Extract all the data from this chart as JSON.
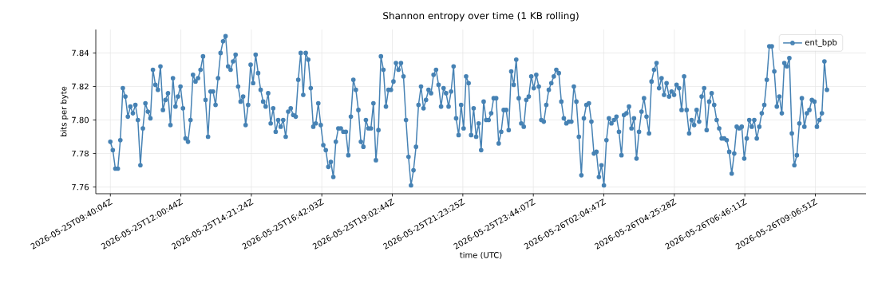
{
  "chart_data": {
    "type": "line",
    "title": "Shannon entropy over time (1 KB rolling)",
    "xlabel": "time (UTC)",
    "ylabel": "bits per byte",
    "x": [
      "2026-05-25T09:40",
      "2026-05-25T09:45",
      "2026-05-25T09:50",
      "2026-05-25T09:55",
      "2026-05-25T10:00",
      "2026-05-25T10:05",
      "2026-05-25T10:10",
      "2026-05-25T10:15",
      "2026-05-25T10:20",
      "2026-05-25T10:25",
      "2026-05-25T10:30",
      "2026-05-25T10:35",
      "2026-05-25T10:40",
      "2026-05-25T10:45",
      "2026-05-25T10:50",
      "2026-05-25T10:55",
      "2026-05-25T11:00",
      "2026-05-25T11:05",
      "2026-05-25T11:10",
      "2026-05-25T11:15",
      "2026-05-25T11:20",
      "2026-05-25T11:25",
      "2026-05-25T11:30",
      "2026-05-25T11:35",
      "2026-05-25T11:40",
      "2026-05-25T11:45",
      "2026-05-25T11:50",
      "2026-05-25T11:55",
      "2026-05-25T12:00",
      "2026-05-25T12:05",
      "2026-05-25T12:10",
      "2026-05-25T12:15",
      "2026-05-25T12:20",
      "2026-05-25T12:25",
      "2026-05-25T12:30",
      "2026-05-25T12:35",
      "2026-05-25T12:40",
      "2026-05-25T12:45",
      "2026-05-25T12:50",
      "2026-05-25T12:55",
      "2026-05-25T13:00",
      "2026-05-25T13:05",
      "2026-05-25T13:10",
      "2026-05-25T13:15",
      "2026-05-25T13:20",
      "2026-05-25T13:25",
      "2026-05-25T13:30",
      "2026-05-25T13:35",
      "2026-05-25T13:40",
      "2026-05-25T13:45",
      "2026-05-25T13:50",
      "2026-05-25T13:55",
      "2026-05-25T14:00",
      "2026-05-25T14:05",
      "2026-05-25T14:10",
      "2026-05-25T14:15",
      "2026-05-25T14:20",
      "2026-05-25T14:25",
      "2026-05-25T14:30",
      "2026-05-25T14:35",
      "2026-05-25T14:40",
      "2026-05-25T14:45",
      "2026-05-25T14:50",
      "2026-05-25T14:55",
      "2026-05-25T15:00",
      "2026-05-25T15:05",
      "2026-05-25T15:10",
      "2026-05-25T15:15",
      "2026-05-25T15:20",
      "2026-05-25T15:25",
      "2026-05-25T15:30",
      "2026-05-25T15:35",
      "2026-05-25T15:40",
      "2026-05-25T15:45",
      "2026-05-25T15:50",
      "2026-05-25T15:55",
      "2026-05-25T16:00",
      "2026-05-25T16:05",
      "2026-05-25T16:10",
      "2026-05-25T16:15",
      "2026-05-25T16:20",
      "2026-05-25T16:25",
      "2026-05-25T16:30",
      "2026-05-25T16:35",
      "2026-05-25T16:40",
      "2026-05-25T16:45",
      "2026-05-25T16:50",
      "2026-05-25T16:55",
      "2026-05-25T17:00",
      "2026-05-25T17:05",
      "2026-05-25T17:10",
      "2026-05-25T17:15",
      "2026-05-25T17:20",
      "2026-05-25T17:25",
      "2026-05-25T17:30",
      "2026-05-25T17:35",
      "2026-05-25T17:40",
      "2026-05-25T17:45",
      "2026-05-25T17:50",
      "2026-05-25T17:55",
      "2026-05-25T18:00",
      "2026-05-25T18:05",
      "2026-05-25T18:10",
      "2026-05-25T18:15",
      "2026-05-25T18:20",
      "2026-05-25T18:25",
      "2026-05-25T18:30",
      "2026-05-25T18:35",
      "2026-05-25T18:40",
      "2026-05-25T18:45",
      "2026-05-25T18:50",
      "2026-05-25T18:55",
      "2026-05-25T19:00",
      "2026-05-25T19:05",
      "2026-05-25T19:10",
      "2026-05-25T19:15",
      "2026-05-25T19:20",
      "2026-05-25T19:25",
      "2026-05-25T19:30",
      "2026-05-25T19:35",
      "2026-05-25T19:40",
      "2026-05-25T19:45",
      "2026-05-25T19:50",
      "2026-05-25T19:55",
      "2026-05-25T20:00",
      "2026-05-25T20:05",
      "2026-05-25T20:10",
      "2026-05-25T20:15",
      "2026-05-25T20:20",
      "2026-05-25T20:25",
      "2026-05-25T20:30",
      "2026-05-25T20:35",
      "2026-05-25T20:40",
      "2026-05-25T20:45",
      "2026-05-25T20:50",
      "2026-05-25T20:55",
      "2026-05-25T21:00",
      "2026-05-25T21:05",
      "2026-05-25T21:10",
      "2026-05-25T21:15",
      "2026-05-25T21:20",
      "2026-05-25T21:25",
      "2026-05-25T21:30",
      "2026-05-25T21:35",
      "2026-05-25T21:40",
      "2026-05-25T21:45",
      "2026-05-25T21:50",
      "2026-05-25T21:55",
      "2026-05-25T22:00",
      "2026-05-25T22:05",
      "2026-05-25T22:10",
      "2026-05-25T22:15",
      "2026-05-25T22:20",
      "2026-05-25T22:25",
      "2026-05-25T22:30",
      "2026-05-25T22:35",
      "2026-05-25T22:40",
      "2026-05-25T22:45",
      "2026-05-25T22:50",
      "2026-05-25T22:55",
      "2026-05-25T23:00",
      "2026-05-25T23:05",
      "2026-05-25T23:10",
      "2026-05-25T23:15",
      "2026-05-25T23:20",
      "2026-05-25T23:25",
      "2026-05-25T23:30",
      "2026-05-25T23:35",
      "2026-05-25T23:40",
      "2026-05-25T23:45",
      "2026-05-25T23:50",
      "2026-05-25T23:55",
      "2026-05-26T00:00",
      "2026-05-26T00:05",
      "2026-05-26T00:10",
      "2026-05-26T00:15",
      "2026-05-26T00:20",
      "2026-05-26T00:25",
      "2026-05-26T00:30",
      "2026-05-26T00:35",
      "2026-05-26T00:40",
      "2026-05-26T00:45",
      "2026-05-26T00:50",
      "2026-05-26T00:55",
      "2026-05-26T01:00",
      "2026-05-26T01:05",
      "2026-05-26T01:10",
      "2026-05-26T01:15",
      "2026-05-26T01:20",
      "2026-05-26T01:25",
      "2026-05-26T01:30",
      "2026-05-26T01:35",
      "2026-05-26T01:40",
      "2026-05-26T01:45",
      "2026-05-26T01:50",
      "2026-05-26T01:55",
      "2026-05-26T02:00",
      "2026-05-26T02:05",
      "2026-05-26T02:10",
      "2026-05-26T02:15",
      "2026-05-26T02:20",
      "2026-05-26T02:25",
      "2026-05-26T02:30",
      "2026-05-26T02:35",
      "2026-05-26T02:40",
      "2026-05-26T02:45",
      "2026-05-26T02:50",
      "2026-05-26T02:55",
      "2026-05-26T03:00",
      "2026-05-26T03:05",
      "2026-05-26T03:10",
      "2026-05-26T03:15",
      "2026-05-26T03:20",
      "2026-05-26T03:25",
      "2026-05-26T03:30",
      "2026-05-26T03:35",
      "2026-05-26T03:40",
      "2026-05-26T03:45",
      "2026-05-26T03:50",
      "2026-05-26T03:55",
      "2026-05-26T04:00",
      "2026-05-26T04:05",
      "2026-05-26T04:10",
      "2026-05-26T04:15",
      "2026-05-26T04:20",
      "2026-05-26T04:25",
      "2026-05-26T04:30",
      "2026-05-26T04:35",
      "2026-05-26T04:40",
      "2026-05-26T04:45",
      "2026-05-26T04:50",
      "2026-05-26T04:55",
      "2026-05-26T05:00",
      "2026-05-26T05:05",
      "2026-05-26T05:10",
      "2026-05-26T05:15",
      "2026-05-26T05:20",
      "2026-05-26T05:25",
      "2026-05-26T05:30",
      "2026-05-26T05:35",
      "2026-05-26T05:40",
      "2026-05-26T05:45",
      "2026-05-26T05:50",
      "2026-05-26T05:55",
      "2026-05-26T06:00",
      "2026-05-26T06:05",
      "2026-05-26T06:10",
      "2026-05-26T06:15",
      "2026-05-26T06:20",
      "2026-05-26T06:25",
      "2026-05-26T06:30",
      "2026-05-26T06:35",
      "2026-05-26T06:40",
      "2026-05-26T06:45",
      "2026-05-26T06:50",
      "2026-05-26T06:55",
      "2026-05-26T07:00",
      "2026-05-26T07:05",
      "2026-05-26T07:10",
      "2026-05-26T07:15",
      "2026-05-26T07:20",
      "2026-05-26T07:25",
      "2026-05-26T07:30",
      "2026-05-26T07:35",
      "2026-05-26T07:40",
      "2026-05-26T07:45",
      "2026-05-26T07:50",
      "2026-05-26T07:55",
      "2026-05-26T08:00",
      "2026-05-26T08:05",
      "2026-05-26T08:10",
      "2026-05-26T08:15",
      "2026-05-26T08:20",
      "2026-05-26T08:25",
      "2026-05-26T08:30",
      "2026-05-26T08:35",
      "2026-05-26T08:40",
      "2026-05-26T08:45",
      "2026-05-26T08:50",
      "2026-05-26T08:55",
      "2026-05-26T09:00",
      "2026-05-26T09:05",
      "2026-05-26T09:10",
      "2026-05-26T09:15",
      "2026-05-26T09:20",
      "2026-05-26T09:25",
      "2026-05-26T09:30"
    ],
    "series": [
      {
        "name": "ent_bpb",
        "color": "#4682b4",
        "values": [
          7.787,
          7.782,
          7.771,
          7.771,
          7.788,
          7.819,
          7.814,
          7.802,
          7.808,
          7.804,
          7.809,
          7.8,
          7.773,
          7.795,
          7.81,
          7.805,
          7.801,
          7.83,
          7.821,
          7.818,
          7.832,
          7.806,
          7.812,
          7.816,
          7.797,
          7.825,
          7.808,
          7.814,
          7.82,
          7.807,
          7.789,
          7.787,
          7.8,
          7.827,
          7.823,
          7.825,
          7.83,
          7.838,
          7.812,
          7.79,
          7.817,
          7.817,
          7.809,
          7.825,
          7.84,
          7.847,
          7.85,
          7.832,
          7.83,
          7.835,
          7.839,
          7.82,
          7.811,
          7.814,
          7.797,
          7.809,
          7.833,
          7.822,
          7.839,
          7.828,
          7.818,
          7.811,
          7.808,
          7.816,
          7.798,
          7.807,
          7.793,
          7.8,
          7.796,
          7.8,
          7.79,
          7.805,
          7.807,
          7.803,
          7.802,
          7.824,
          7.84,
          7.815,
          7.84,
          7.836,
          7.819,
          7.796,
          7.798,
          7.81,
          7.797,
          7.785,
          7.782,
          7.772,
          7.775,
          7.766,
          7.787,
          7.795,
          7.795,
          7.793,
          7.793,
          7.779,
          7.802,
          7.824,
          7.818,
          7.806,
          7.787,
          7.784,
          7.8,
          7.795,
          7.795,
          7.81,
          7.776,
          7.794,
          7.838,
          7.83,
          7.808,
          7.818,
          7.818,
          7.823,
          7.834,
          7.83,
          7.834,
          7.826,
          7.8,
          7.778,
          7.761,
          7.77,
          7.784,
          7.809,
          7.82,
          7.807,
          7.812,
          7.818,
          7.816,
          7.827,
          7.83,
          7.821,
          7.808,
          7.819,
          7.816,
          7.808,
          7.817,
          7.832,
          7.801,
          7.791,
          7.809,
          7.795,
          7.826,
          7.822,
          7.791,
          7.807,
          7.79,
          7.798,
          7.782,
          7.811,
          7.8,
          7.8,
          7.804,
          7.813,
          7.813,
          7.786,
          7.793,
          7.806,
          7.806,
          7.794,
          7.829,
          7.821,
          7.836,
          7.813,
          7.798,
          7.796,
          7.812,
          7.814,
          7.826,
          7.819,
          7.827,
          7.82,
          7.8,
          7.799,
          7.809,
          7.818,
          7.822,
          7.826,
          7.83,
          7.828,
          7.811,
          7.801,
          7.798,
          7.799,
          7.799,
          7.82,
          7.811,
          7.79,
          7.767,
          7.801,
          7.809,
          7.81,
          7.799,
          7.78,
          7.781,
          7.766,
          7.773,
          7.761,
          7.788,
          7.801,
          7.798,
          7.8,
          7.802,
          7.793,
          7.779,
          7.803,
          7.804,
          7.808,
          7.795,
          7.801,
          7.777,
          7.793,
          7.805,
          7.813,
          7.802,
          7.792,
          7.823,
          7.83,
          7.834,
          7.819,
          7.825,
          7.815,
          7.822,
          7.814,
          7.817,
          7.815,
          7.821,
          7.819,
          7.806,
          7.826,
          7.806,
          7.792,
          7.8,
          7.797,
          7.806,
          7.799,
          7.814,
          7.819,
          7.794,
          7.811,
          7.816,
          7.809,
          7.8,
          7.795,
          7.789,
          7.789,
          7.788,
          7.781,
          7.768,
          7.78,
          7.796,
          7.795,
          7.796,
          7.777,
          7.789,
          7.8,
          7.796,
          7.8,
          7.789,
          7.796,
          7.804,
          7.809,
          7.824,
          7.844,
          7.844,
          7.829,
          7.808,
          7.814,
          7.804,
          7.834,
          7.832,
          7.837,
          7.792,
          7.773,
          7.779,
          7.798,
          7.813,
          7.796,
          7.804,
          7.806,
          7.812,
          7.811,
          7.796,
          7.8,
          7.804,
          7.835,
          7.818
        ]
      }
    ],
    "xlim": [
      "2026-05-25T09:11",
      "2026-05-26T10:48"
    ],
    "ylim": [
      7.756,
      7.854
    ],
    "xticks": [
      {
        "value": "2026-05-25T09:40:04",
        "label": "2026-05-25T09:40:04Z"
      },
      {
        "value": "2026-05-25T12:00:44",
        "label": "2026-05-25T12:00:44Z"
      },
      {
        "value": "2026-05-25T14:21:24",
        "label": "2026-05-25T14:21:24Z"
      },
      {
        "value": "2026-05-25T16:42:03",
        "label": "2026-05-25T16:42:03Z"
      },
      {
        "value": "2026-05-25T19:02:44",
        "label": "2026-05-25T19:02:44Z"
      },
      {
        "value": "2026-05-25T21:23:25",
        "label": "2026-05-25T21:23:25Z"
      },
      {
        "value": "2026-05-25T23:44:07",
        "label": "2026-05-25T23:44:07Z"
      },
      {
        "value": "2026-05-26T02:04:47",
        "label": "2026-05-26T02:04:47Z"
      },
      {
        "value": "2026-05-26T04:25:28",
        "label": "2026-05-26T04:25:28Z"
      },
      {
        "value": "2026-05-26T06:46:11",
        "label": "2026-05-26T06:46:11Z"
      },
      {
        "value": "2026-05-26T09:06:51",
        "label": "2026-05-26T09:06:51Z"
      }
    ],
    "yticks": [
      {
        "value": 7.76,
        "label": "7.76"
      },
      {
        "value": 7.78,
        "label": "7.78"
      },
      {
        "value": 7.8,
        "label": "7.80"
      },
      {
        "value": 7.82,
        "label": "7.82"
      },
      {
        "value": 7.84,
        "label": "7.84"
      }
    ],
    "grid": true,
    "legend": "top right",
    "marker": "circle",
    "line_style": "solid"
  }
}
